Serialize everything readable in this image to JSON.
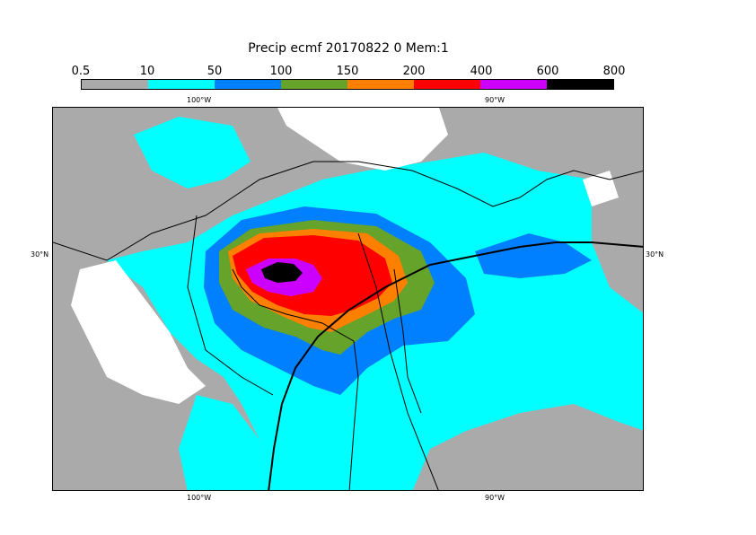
{
  "title": "Precip ecmf 20170822 0 Mem:1",
  "legend": {
    "ticks": [
      "0.5",
      "10",
      "50",
      "100",
      "150",
      "200",
      "400",
      "600",
      "800"
    ],
    "colors": [
      "#aaaaaa",
      "#00ffff",
      "#0080ff",
      "#66a32b",
      "#ff8000",
      "#ff0000",
      "#cc00ff",
      "#000000"
    ]
  },
  "axes": {
    "top_lon": [
      "100°W",
      "90°W"
    ],
    "bottom_lon": [
      "100°W",
      "90°W"
    ],
    "left_lat": "30°N",
    "right_lat": "30°N"
  },
  "colors": {
    "land_dry": "#aaaaaa",
    "zero": "#ffffff"
  }
}
